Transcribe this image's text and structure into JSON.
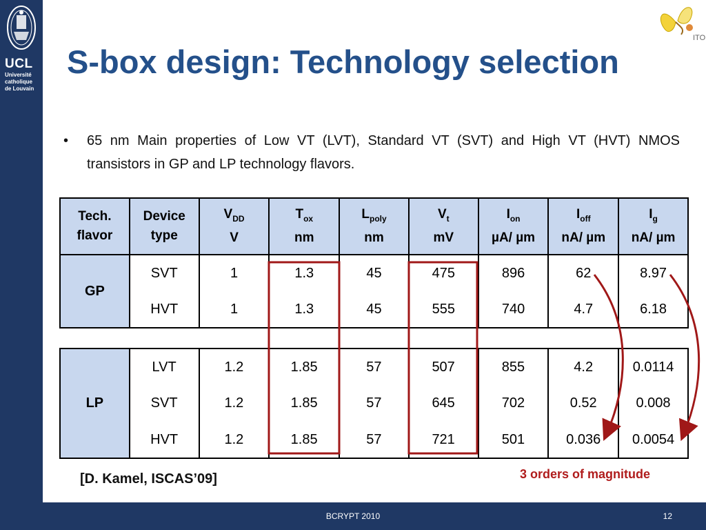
{
  "sidebar": {
    "ucl": "UCL",
    "line1": "Université",
    "line2": "catholique",
    "line3": "de Louvain"
  },
  "title": "S-box design: Technology selection",
  "bullet": "65 nm Main properties of Low VT (LVT), Standard VT (SVT) and High VT (HVT) NMOS transistors in GP and LP technology flavors.",
  "logo": {
    "text": "ITO"
  },
  "headers": [
    {
      "main": "Tech.",
      "sub": "",
      "unit": "flavor"
    },
    {
      "main": "Device",
      "sub": "",
      "unit": "type"
    },
    {
      "main": "V",
      "sub": "DD",
      "unit": "V"
    },
    {
      "main": "T",
      "sub": "ox",
      "unit": "nm"
    },
    {
      "main": "L",
      "sub": "poly",
      "unit": "nm"
    },
    {
      "main": "V",
      "sub": "t",
      "unit": "mV"
    },
    {
      "main": "I",
      "sub": "on",
      "unit": "µA/ µm"
    },
    {
      "main": "I",
      "sub": "off",
      "unit": "nA/ µm"
    },
    {
      "main": "I",
      "sub": "g",
      "unit": "nA/ µm"
    }
  ],
  "gp": {
    "flavor": "GP",
    "rows": [
      [
        "SVT",
        "1",
        "1.3",
        "45",
        "475",
        "896",
        "62",
        "8.97"
      ],
      [
        "HVT",
        "1",
        "1.3",
        "45",
        "555",
        "740",
        "4.7",
        "6.18"
      ]
    ]
  },
  "lp": {
    "flavor": "LP",
    "rows": [
      [
        "LVT",
        "1.2",
        "1.85",
        "57",
        "507",
        "855",
        "4.2",
        "0.0114"
      ],
      [
        "SVT",
        "1.2",
        "1.85",
        "57",
        "645",
        "702",
        "0.52",
        "0.008"
      ],
      [
        "HVT",
        "1.2",
        "1.85",
        "57",
        "721",
        "501",
        "0.036",
        "0.0054"
      ]
    ]
  },
  "citation": "[D. Kamel, ISCAS’09]",
  "note": "3 orders of magnitude",
  "footer": {
    "event": "BCRYPT 2010",
    "page": "12"
  },
  "colors": {
    "band": "#1f3864",
    "title": "#24508a",
    "header_fill": "#c8d7ee",
    "highlight": "#b01c1c"
  }
}
